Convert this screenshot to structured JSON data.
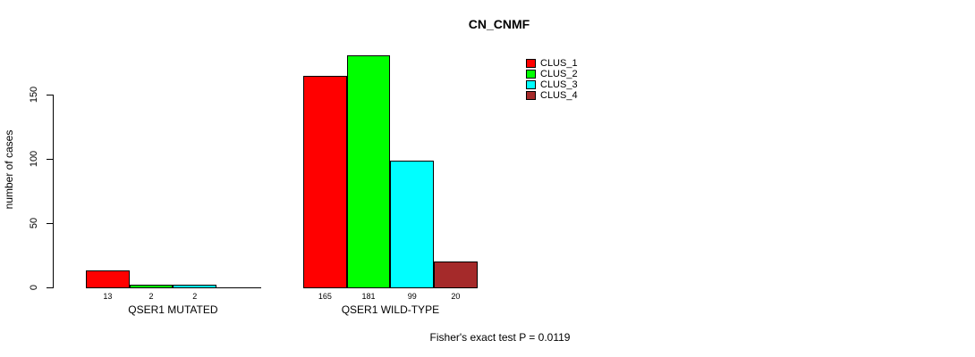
{
  "chart_data": {
    "type": "bar",
    "title": "CN_CNMF",
    "ylabel": "number of cases",
    "xlabel": "",
    "footnote": "Fisher's exact test P = 0.0119",
    "categories": [
      "QSER1 MUTATED",
      "QSER1 WILD-TYPE"
    ],
    "series": [
      {
        "name": "CLUS_1",
        "color": "#FF0000",
        "values": [
          13,
          165
        ]
      },
      {
        "name": "CLUS_2",
        "color": "#00FF00",
        "values": [
          2,
          181
        ]
      },
      {
        "name": "CLUS_3",
        "color": "#00FFFF",
        "values": [
          2,
          99
        ]
      },
      {
        "name": "CLUS_4",
        "color": "#A52A2A",
        "values": [
          0,
          20
        ]
      }
    ],
    "yticks": [
      0,
      50,
      100,
      150
    ],
    "ylim": [
      0,
      188
    ],
    "grid": false,
    "legend_position": "top-right",
    "bar_value_labels": "shown under bars; zero values unlabeled",
    "axis_color": "#000000"
  }
}
